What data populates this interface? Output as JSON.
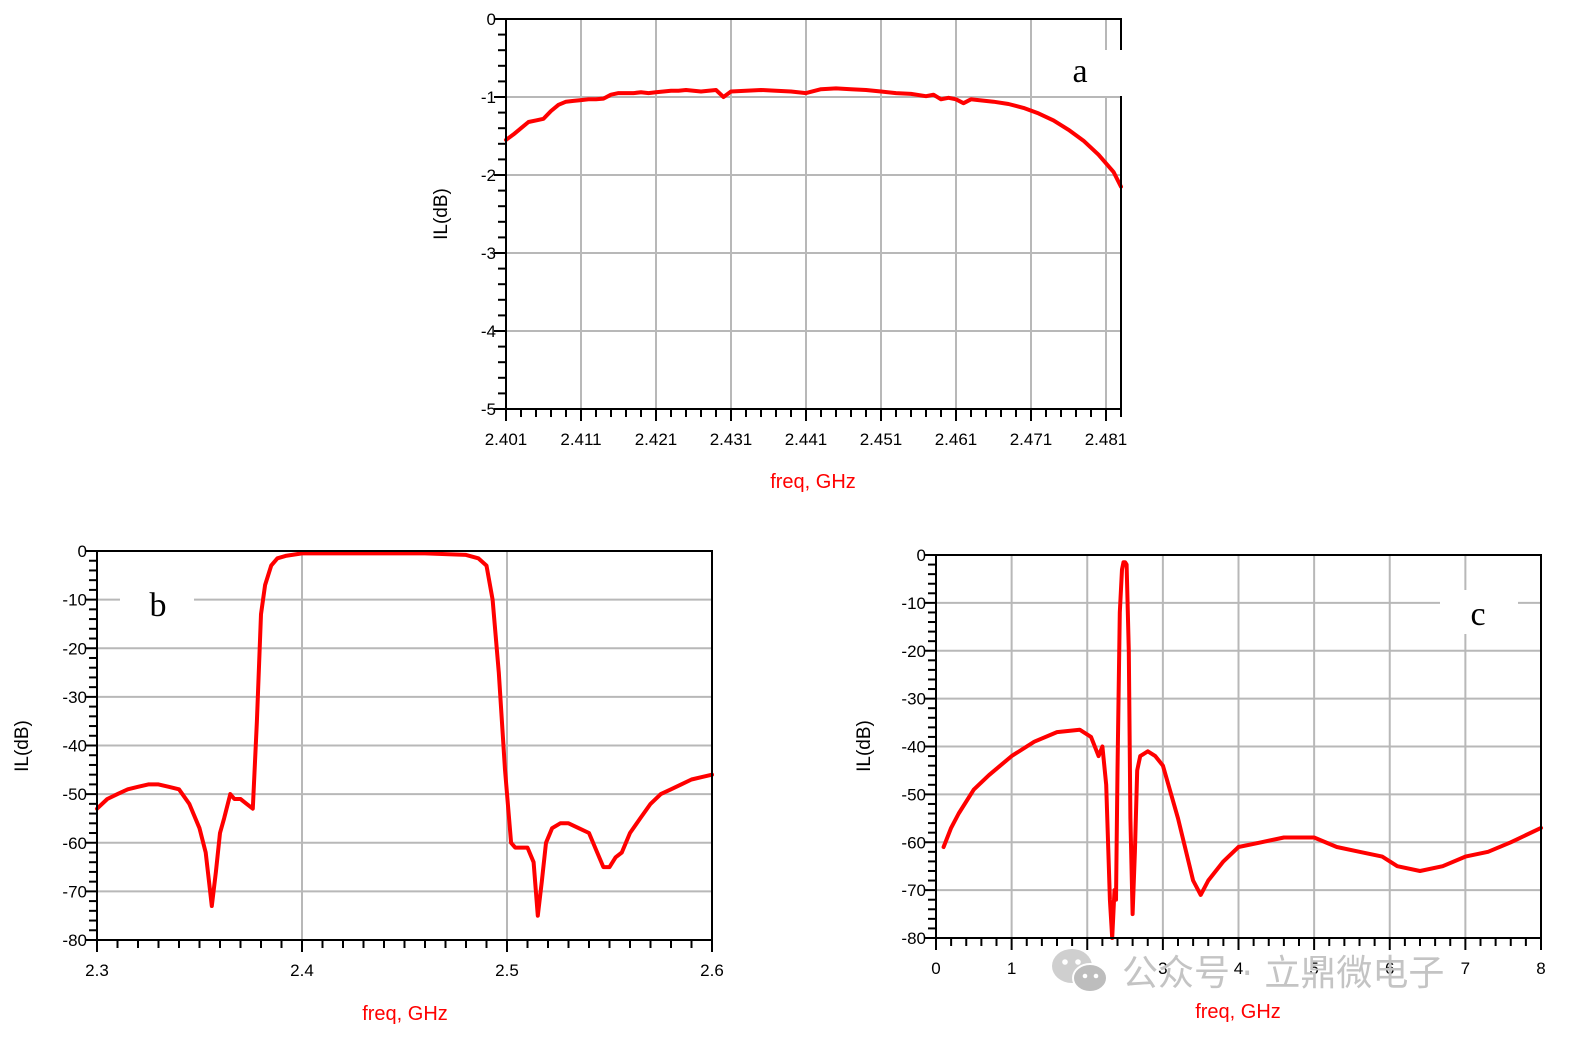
{
  "chart_data": [
    {
      "id": "a",
      "type": "line",
      "panel_label": "a",
      "xlabel": "freq, GHz",
      "ylabel": "IL(dB)",
      "xlim": [
        2.401,
        2.483
      ],
      "ylim": [
        -5,
        0
      ],
      "x_ticks": [
        2.401,
        2.411,
        2.421,
        2.431,
        2.441,
        2.451,
        2.461,
        2.471,
        2.481
      ],
      "x_tick_labels": [
        "2.401",
        "2.411",
        "2.421",
        "2.431",
        "2.441",
        "2.451",
        "2.461",
        "2.471",
        "2.481"
      ],
      "y_ticks": [
        0,
        -1,
        -2,
        -3,
        -4,
        -5
      ],
      "y_tick_labels": [
        "0",
        "-1",
        "-2",
        "-3",
        "-4",
        "-5"
      ],
      "grid": true,
      "line_color": "#ff0000",
      "series": [
        {
          "x": [
            2.401,
            2.402,
            2.403,
            2.404,
            2.405,
            2.406,
            2.407,
            2.408,
            2.409,
            2.41,
            2.411,
            2.412,
            2.413,
            2.414,
            2.415,
            2.416,
            2.417,
            2.418,
            2.419,
            2.42,
            2.421,
            2.422,
            2.423,
            2.424,
            2.425,
            2.426,
            2.427,
            2.428,
            2.429,
            2.43,
            2.431,
            2.433,
            2.435,
            2.437,
            2.439,
            2.441,
            2.443,
            2.445,
            2.447,
            2.449,
            2.451,
            2.453,
            2.455,
            2.457,
            2.458,
            2.459,
            2.46,
            2.461,
            2.462,
            2.463,
            2.464,
            2.466,
            2.468,
            2.47,
            2.472,
            2.474,
            2.476,
            2.478,
            2.48,
            2.482,
            2.483
          ],
          "y": [
            -1.55,
            -1.48,
            -1.4,
            -1.32,
            -1.3,
            -1.28,
            -1.18,
            -1.1,
            -1.06,
            -1.05,
            -1.04,
            -1.03,
            -1.03,
            -1.02,
            -0.97,
            -0.95,
            -0.95,
            -0.95,
            -0.94,
            -0.95,
            -0.94,
            -0.93,
            -0.92,
            -0.92,
            -0.91,
            -0.92,
            -0.93,
            -0.92,
            -0.91,
            -1.0,
            -0.93,
            -0.92,
            -0.91,
            -0.92,
            -0.93,
            -0.95,
            -0.9,
            -0.89,
            -0.9,
            -0.91,
            -0.93,
            -0.95,
            -0.96,
            -0.99,
            -0.97,
            -1.03,
            -1.01,
            -1.03,
            -1.08,
            -1.03,
            -1.04,
            -1.06,
            -1.09,
            -1.14,
            -1.21,
            -1.3,
            -1.42,
            -1.56,
            -1.74,
            -1.96,
            -2.15
          ]
        }
      ]
    },
    {
      "id": "b",
      "type": "line",
      "panel_label": "b",
      "xlabel": "freq, GHz",
      "ylabel": "IL(dB)",
      "xlim": [
        2.3,
        2.6
      ],
      "ylim": [
        -80,
        0
      ],
      "x_ticks": [
        2.3,
        2.4,
        2.5,
        2.6
      ],
      "x_tick_labels": [
        "2.3",
        "2.4",
        "2.5",
        "2.6"
      ],
      "y_ticks": [
        0,
        -10,
        -20,
        -30,
        -40,
        -50,
        -60,
        -70,
        -80
      ],
      "y_tick_labels": [
        "0",
        "-10",
        "-20",
        "-30",
        "-40",
        "-50",
        "-60",
        "-70",
        "-80"
      ],
      "grid": true,
      "line_color": "#ff0000",
      "series": [
        {
          "x": [
            2.3,
            2.305,
            2.31,
            2.315,
            2.32,
            2.325,
            2.33,
            2.335,
            2.34,
            2.345,
            2.35,
            2.353,
            2.356,
            2.358,
            2.36,
            2.362,
            2.365,
            2.367,
            2.37,
            2.373,
            2.376,
            2.378,
            2.38,
            2.382,
            2.385,
            2.388,
            2.392,
            2.4,
            2.42,
            2.44,
            2.46,
            2.48,
            2.486,
            2.49,
            2.493,
            2.496,
            2.499,
            2.502,
            2.504,
            2.506,
            2.51,
            2.513,
            2.515,
            2.517,
            2.519,
            2.522,
            2.526,
            2.53,
            2.535,
            2.54,
            2.544,
            2.547,
            2.55,
            2.553,
            2.556,
            2.56,
            2.565,
            2.57,
            2.575,
            2.58,
            2.585,
            2.59,
            2.595,
            2.6
          ],
          "y": [
            -53,
            -51,
            -50,
            -49,
            -48.5,
            -48,
            -48,
            -48.5,
            -49,
            -52,
            -57,
            -62,
            -73,
            -66,
            -58,
            -55,
            -50,
            -51,
            -51,
            -52,
            -53,
            -35,
            -13,
            -7,
            -3,
            -1.5,
            -1,
            -0.5,
            -0.5,
            -0.5,
            -0.5,
            -0.8,
            -1.5,
            -3,
            -10,
            -25,
            -45,
            -60,
            -61,
            -61,
            -61,
            -64,
            -75,
            -68,
            -60,
            -57,
            -56,
            -56,
            -57,
            -58,
            -62,
            -65,
            -65,
            -63,
            -62,
            -58,
            -55,
            -52,
            -50,
            -49,
            -48,
            -47,
            -46.5,
            -46
          ]
        }
      ]
    },
    {
      "id": "c",
      "type": "line",
      "panel_label": "c",
      "xlabel": "freq, GHz",
      "ylabel": "IL(dB)",
      "xlim": [
        0,
        8
      ],
      "ylim": [
        -80,
        0
      ],
      "x_ticks": [
        0,
        1,
        2,
        3,
        4,
        5,
        6,
        7,
        8
      ],
      "x_tick_labels": [
        "0",
        "1",
        "2",
        "3",
        "4",
        "5",
        "6",
        "7",
        "8"
      ],
      "y_ticks": [
        0,
        -10,
        -20,
        -30,
        -40,
        -50,
        -60,
        -70,
        -80
      ],
      "y_tick_labels": [
        "0",
        "-10",
        "-20",
        "-30",
        "-40",
        "-50",
        "-60",
        "-70",
        "-80"
      ],
      "grid": true,
      "line_color": "#ff0000",
      "series": [
        {
          "x": [
            0.1,
            0.2,
            0.3,
            0.5,
            0.7,
            1.0,
            1.3,
            1.6,
            1.9,
            2.05,
            2.1,
            2.15,
            2.2,
            2.25,
            2.3,
            2.33,
            2.36,
            2.38,
            2.4,
            2.43,
            2.46,
            2.48,
            2.5,
            2.52,
            2.55,
            2.57,
            2.6,
            2.63,
            2.66,
            2.7,
            2.8,
            2.9,
            3.0,
            3.2,
            3.4,
            3.5,
            3.6,
            3.8,
            4.0,
            4.3,
            4.6,
            5.0,
            5.3,
            5.6,
            5.9,
            6.1,
            6.4,
            6.7,
            7.0,
            7.3,
            7.6,
            8.0
          ],
          "y": [
            -61,
            -57,
            -54,
            -49,
            -46,
            -42,
            -39,
            -37,
            -36.5,
            -38,
            -40,
            -42,
            -40,
            -48,
            -72,
            -80,
            -70,
            -72,
            -45,
            -12,
            -3,
            -1.5,
            -1.5,
            -2,
            -20,
            -55,
            -75,
            -62,
            -45,
            -42,
            -41,
            -42,
            -44,
            -55,
            -68,
            -71,
            -68,
            -64,
            -61,
            -60,
            -59,
            -59,
            -61,
            -62,
            -63,
            -65,
            -66,
            -65,
            -63,
            -62,
            -60,
            -57
          ]
        }
      ]
    }
  ],
  "watermark": {
    "text": "公众号 · 立鼎微电子",
    "icon": "wechat-logo-icon"
  }
}
